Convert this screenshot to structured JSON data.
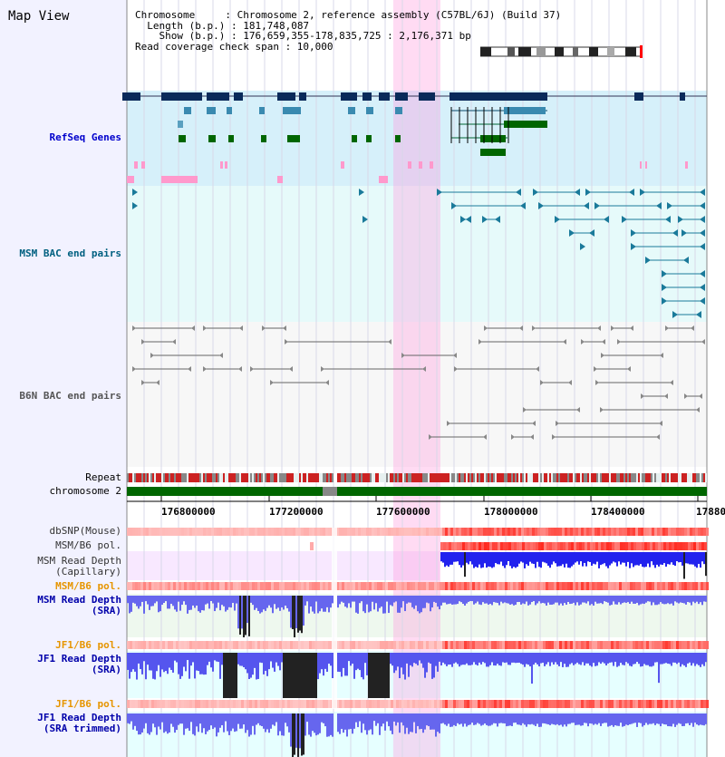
{
  "title": "Map View",
  "info": {
    "chromosome": "Chromosome     : Chromosome 2, reference assembly (C57BL/6J) (Build 37)",
    "length": "Length (b.p.) : 181,748,087",
    "show": "Show (b.p.) : 176,659,355-178,835,725 : 2,176,371 bp",
    "coverage": "Read coverage check span : 10,000"
  },
  "tracks": {
    "refseq": "RefSeq Genes",
    "msm_bac": "MSM BAC end pairs",
    "b6n_bac": "B6N BAC end pairs",
    "repeat": "Repeat",
    "chromosome": "chromosome 2",
    "dbsnp": "dbSNP(Mouse)",
    "msm_b6_pol": "MSM/B6 pol.",
    "msm_depth_cap_1": "MSM Read Depth",
    "msm_depth_cap_2": "(Capillary)",
    "msm_b6_pol_2": "MSM/B6 pol.",
    "msm_depth_sra_1": "MSM Read Depth",
    "msm_depth_sra_2": "(SRA)",
    "jf1_b6_pol": "JF1/B6 pol.",
    "jf1_depth_sra_1": "JF1 Read Depth",
    "jf1_depth_sra_2": "(SRA)",
    "jf1_b6_pol_2": "JF1/B6 pol.",
    "jf1_depth_trim_1": "JF1 Read Depth",
    "jf1_depth_trim_2": "(SRA trimmed)"
  },
  "axis": {
    "ticks": [
      "176800000",
      "177200000",
      "177600000",
      "178000000",
      "178400000",
      "17880"
    ]
  },
  "colors": {
    "refseq_label": "#0000cc",
    "msm_bac_label": "#006080",
    "b6n_bac_label": "#555555",
    "pol_label": "#e69500",
    "depth_label": "#000099",
    "highlight": "#ff99dd",
    "depth_blue": "#3333ff",
    "gene_navy": "#0a2a5a",
    "gene_green": "#006600",
    "chrom_green": "#006600"
  }
}
